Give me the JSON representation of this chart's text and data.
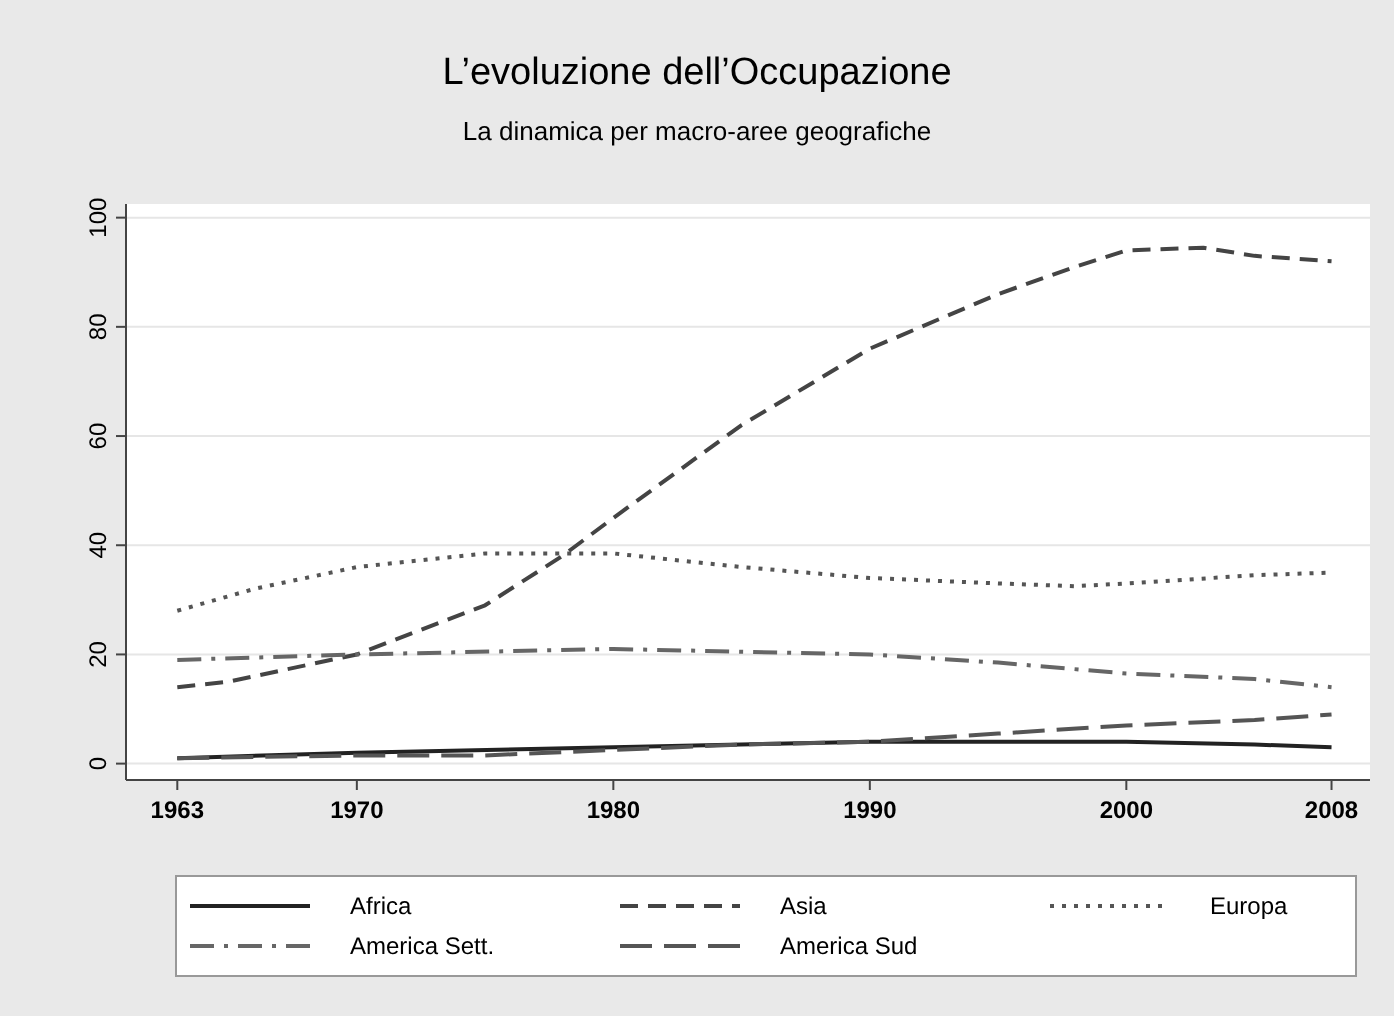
{
  "chart_data": {
    "type": "line",
    "title": "L’evoluzione dell’Occupazione",
    "subtitle": "La dinamica per macro-aree geografiche",
    "xlim": [
      1961,
      2009.5
    ],
    "xticks": [
      1963,
      1970,
      1980,
      1990,
      2000,
      2008
    ],
    "ylim": [
      -3,
      102.5
    ],
    "yticks": [
      0,
      20,
      40,
      60,
      80,
      100
    ],
    "grid": "y",
    "legend": "bottom",
    "series": [
      {
        "name": "Africa",
        "color": "#222222",
        "line_style": "solid",
        "x": [
          1963,
          1970,
          1980,
          1990,
          2000,
          2005,
          2008
        ],
        "values": [
          1,
          2,
          3,
          4,
          4,
          3.5,
          3
        ]
      },
      {
        "name": "Asia",
        "color": "#444444",
        "line_style": "dashed",
        "x": [
          1963,
          1965,
          1970,
          1975,
          1978,
          1980,
          1985,
          1990,
          1995,
          1998,
          2000,
          2003,
          2005,
          2008
        ],
        "values": [
          14,
          15,
          20,
          29,
          38,
          45,
          62,
          76,
          86,
          91,
          94,
          94.5,
          93,
          92
        ]
      },
      {
        "name": "Europa",
        "color": "#555555",
        "line_style": "dotted",
        "x": [
          1963,
          1966,
          1970,
          1975,
          1980,
          1985,
          1990,
          1995,
          1998,
          2000,
          2005,
          2008
        ],
        "values": [
          28,
          32,
          36,
          38.5,
          38.5,
          36,
          34,
          33,
          32.5,
          33,
          34.5,
          35
        ]
      },
      {
        "name": "America Sett.",
        "color": "#666666",
        "line_style": "dashdot",
        "x": [
          1963,
          1970,
          1980,
          1985,
          1990,
          1995,
          2000,
          2005,
          2008
        ],
        "values": [
          19,
          20,
          21,
          20.5,
          20,
          18.5,
          16.5,
          15.5,
          14
        ]
      },
      {
        "name": "America Sud",
        "color": "#555555",
        "line_style": "longdash",
        "x": [
          1963,
          1970,
          1975,
          1980,
          1985,
          1990,
          1995,
          2000,
          2005,
          2008
        ],
        "values": [
          1,
          1.5,
          1.5,
          2.5,
          3.5,
          4,
          5.5,
          7,
          8,
          9
        ]
      }
    ]
  }
}
